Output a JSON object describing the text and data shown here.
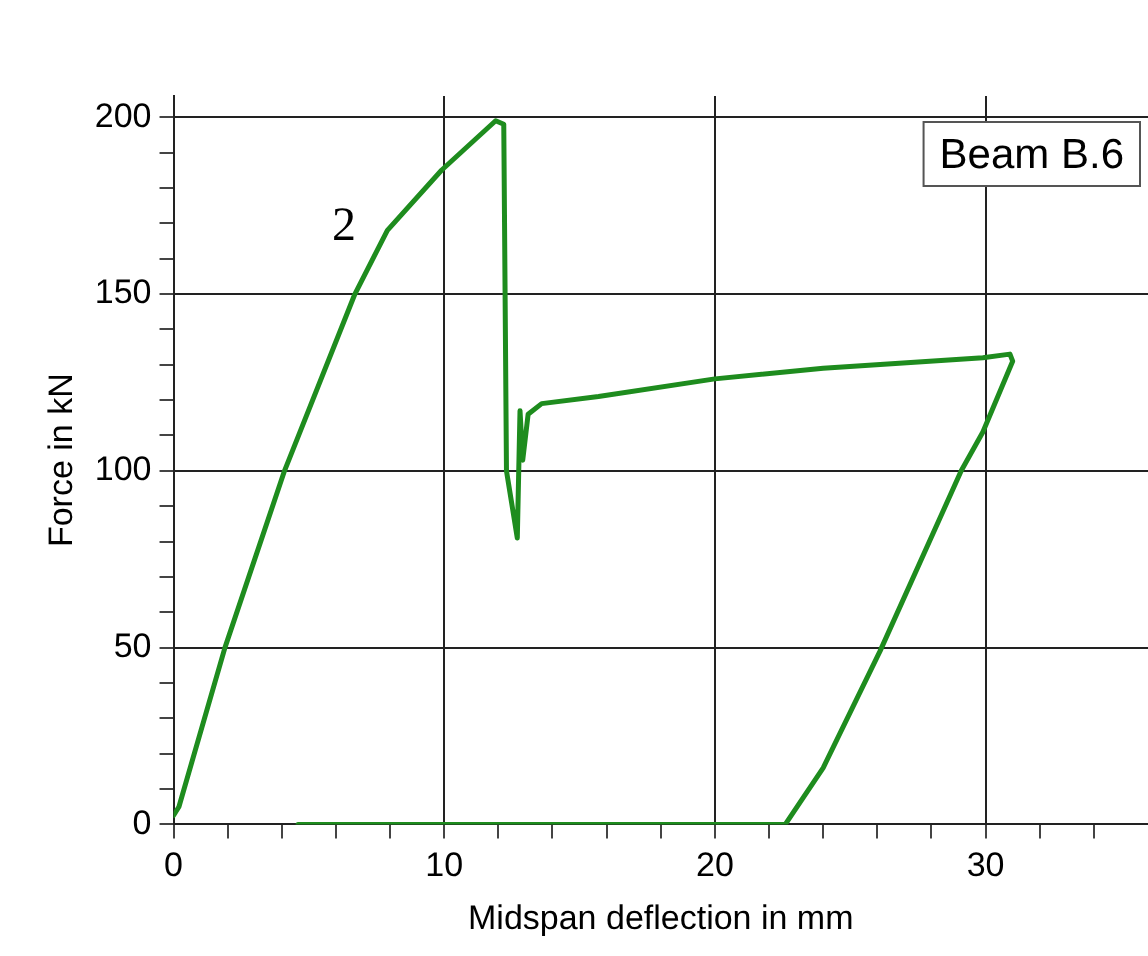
{
  "chart_data": {
    "type": "line",
    "xlabel": "Midspan deflection in mm",
    "ylabel": "Force in kN",
    "x": [
      0,
      0.2,
      1.9,
      4.1,
      6.7,
      7.9,
      9.9,
      11.9,
      12.2,
      12.3,
      12.7,
      12.8,
      12.9,
      13.1,
      13.6,
      15.7,
      20,
      24,
      29.9,
      30.9,
      31,
      29.9,
      29.1,
      26.1,
      24,
      22.6,
      4.6
    ],
    "series": [
      {
        "color": "#1e8c1e",
        "values": [
          2.5,
          5,
          50,
          100,
          150,
          168,
          185,
          199,
          198,
          100,
          81,
          117,
          103,
          116,
          119,
          121,
          126,
          129,
          132,
          133,
          131,
          111,
          100,
          49,
          16,
          0,
          0
        ]
      }
    ],
    "xlim": [
      0,
      36
    ],
    "xticks": [
      0,
      {
        "value": 2,
        "label": null
      },
      {
        "value": 4,
        "label": null
      },
      {
        "value": 6,
        "label": null
      },
      {
        "value": 8,
        "label": null
      },
      10,
      {
        "value": 12,
        "label": null
      },
      {
        "value": 14,
        "label": null
      },
      {
        "value": 16,
        "label": null
      },
      {
        "value": 18,
        "label": null
      },
      20,
      {
        "value": 22,
        "label": null
      },
      {
        "value": 24,
        "label": null
      },
      {
        "value": 26,
        "label": null
      },
      {
        "value": 28,
        "label": null
      },
      30,
      {
        "value": 32,
        "label": null
      },
      {
        "value": 34,
        "label": null
      }
    ],
    "ylim": [
      0,
      206
    ],
    "yticks": [
      0,
      {
        "value": 10,
        "label": null
      },
      {
        "value": 20,
        "label": null
      },
      {
        "value": 30,
        "label": null
      },
      {
        "value": 40,
        "label": null
      },
      50,
      {
        "value": 60,
        "label": null
      },
      {
        "value": 70,
        "label": null
      },
      {
        "value": 80,
        "label": null
      },
      {
        "value": 90,
        "label": null
      },
      100,
      {
        "value": 110,
        "label": null
      },
      {
        "value": 120,
        "label": null
      },
      {
        "value": 130,
        "label": null
      },
      {
        "value": 140,
        "label": null
      },
      150,
      {
        "value": 160,
        "label": null
      },
      {
        "value": 170,
        "label": null
      },
      {
        "value": 180,
        "label": null
      },
      {
        "value": 190,
        "label": null
      },
      200
    ],
    "grid": true,
    "marker": "none",
    "line_style": "solid",
    "legend": false,
    "annotations": [
      "2",
      "Beam B.6"
    ]
  }
}
